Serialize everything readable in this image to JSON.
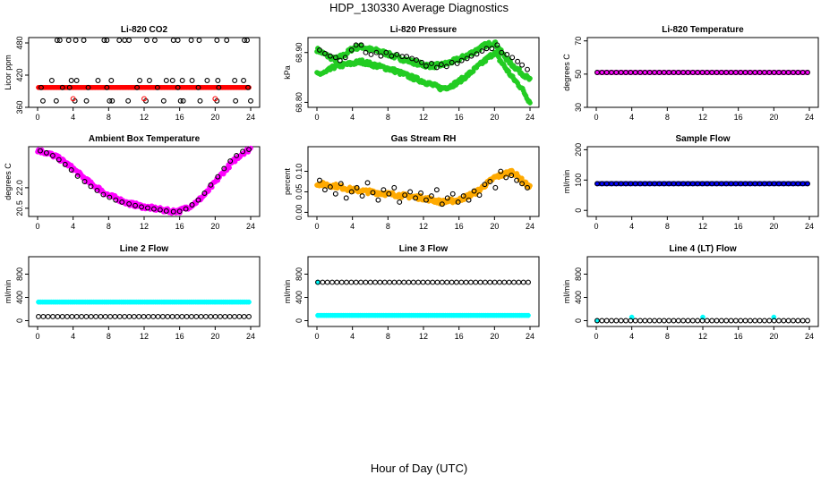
{
  "figure": {
    "title": "HDP_130330  Average Diagnostics",
    "xlabel": "Hour of Day (UTC)"
  },
  "colors": {
    "black": "#000000",
    "red": "#ff0000",
    "green": "#22cc22",
    "magenta": "#ff00ff",
    "orange": "#ffaa00",
    "blue": "#0000ff",
    "cyan": "#00ffff"
  },
  "chart_data": [
    {
      "type": "scatter",
      "title": "Li-820 CO2",
      "ylabel": "Licor ppm",
      "xlim": [
        0,
        24
      ],
      "ylim": [
        360,
        490
      ],
      "xticks": [
        "0",
        "4",
        "8",
        "12",
        "16",
        "20",
        "24"
      ],
      "yticks": [
        {
          "value": 360,
          "label": "360"
        },
        {
          "value": 420,
          "label": "420"
        },
        {
          "value": 480,
          "label": "480"
        }
      ],
      "series": [
        {
          "name": "red dense",
          "color": "red",
          "marker": "filled",
          "y_const": 397,
          "count": 160
        },
        {
          "name": "black upper",
          "color": "black",
          "marker": "open",
          "x": [
            2.2,
            2.5,
            3.5,
            4.3,
            5.2,
            7.5,
            7.8,
            9.2,
            9.8,
            10.3,
            12.3,
            13.2,
            15.3,
            15.8,
            17.3,
            18.2,
            20.2,
            21.3,
            23.3,
            23.6
          ],
          "y": [
            485,
            485,
            485,
            485,
            485,
            485,
            485,
            485,
            485,
            485,
            485,
            485,
            485,
            485,
            485,
            485,
            485,
            485,
            485,
            485
          ]
        },
        {
          "name": "black mid",
          "color": "black",
          "marker": "open",
          "x": [
            1.6,
            3.8,
            4.4,
            6.8,
            8.3,
            11.5,
            12.6,
            14.5,
            15.2,
            16.3,
            17.4,
            19.1,
            20.3,
            22.2,
            23.2
          ],
          "y": [
            410,
            410,
            410,
            410,
            410,
            410,
            410,
            410,
            410,
            410,
            410,
            410,
            410,
            410,
            410
          ]
        },
        {
          "name": "black 397",
          "color": "black",
          "marker": "open",
          "x": [
            0.4,
            2.8,
            3.6,
            5.7,
            7.8,
            11.2,
            13.5,
            15.8,
            18.1,
            20.4,
            23.7
          ],
          "y": [
            397,
            397,
            397,
            397,
            397,
            397,
            397,
            397,
            397,
            397,
            397
          ]
        },
        {
          "name": "black low",
          "color": "black",
          "marker": "open",
          "x": [
            0.6,
            2.1,
            4.2,
            5.5,
            8.1,
            8.4,
            10.2,
            12.2,
            14.2,
            16.1,
            16.4,
            18.3,
            20.2,
            22.3,
            24.0
          ],
          "y": [
            372,
            372,
            372,
            372,
            372,
            372,
            372,
            372,
            372,
            372,
            372,
            372,
            372,
            372,
            372
          ]
        },
        {
          "name": "red low",
          "color": "red",
          "marker": "open",
          "x": [
            4.0,
            12.0,
            20.0
          ],
          "y": [
            376,
            376,
            376
          ]
        }
      ]
    },
    {
      "type": "scatter",
      "title": "Li-820 Pressure",
      "ylabel": "kPa",
      "xlim": [
        0,
        24
      ],
      "ylim": [
        68.79,
        68.93
      ],
      "xticks": [
        "0",
        "4",
        "8",
        "12",
        "16",
        "20",
        "24"
      ],
      "yticks": [
        {
          "value": 68.8,
          "label": "68.80"
        },
        {
          "value": 68.9,
          "label": "68.90"
        }
      ],
      "series": [
        {
          "name": "green upper",
          "color": "green",
          "marker": "filled",
          "x": [
            0,
            1,
            2,
            3,
            4,
            5,
            6,
            7,
            8,
            9,
            10,
            11,
            12,
            13,
            14,
            15,
            16,
            17,
            18,
            19,
            20,
            21,
            22,
            23,
            24
          ],
          "y": [
            68.906,
            68.895,
            68.886,
            68.894,
            68.908,
            68.912,
            68.906,
            68.903,
            68.897,
            68.89,
            68.885,
            68.88,
            68.875,
            68.873,
            68.875,
            68.88,
            68.887,
            68.895,
            68.905,
            68.915,
            68.92,
            68.895,
            68.875,
            68.86,
            68.845
          ]
        },
        {
          "name": "green lower",
          "color": "green",
          "marker": "filled",
          "x": [
            0,
            1,
            2,
            3,
            4,
            5,
            6,
            7,
            8,
            9,
            10,
            11,
            12,
            13,
            14,
            15,
            16,
            17,
            18,
            19,
            20,
            21,
            22,
            23,
            24
          ],
          "y": [
            68.856,
            68.86,
            68.872,
            68.875,
            68.878,
            68.882,
            68.877,
            68.872,
            68.868,
            68.862,
            68.855,
            68.848,
            68.842,
            68.835,
            68.828,
            68.832,
            68.842,
            68.855,
            68.87,
            68.885,
            68.9,
            68.875,
            68.85,
            68.83,
            68.8
          ]
        },
        {
          "name": "black",
          "color": "black",
          "marker": "open",
          "x": [
            0.3,
            0.9,
            1.5,
            2.1,
            2.6,
            3.2,
            3.9,
            4.4,
            5.0,
            5.5,
            6.1,
            6.7,
            7.2,
            7.8,
            8.4,
            9.0,
            9.6,
            10.1,
            10.7,
            11.2,
            11.8,
            12.3,
            12.9,
            13.5,
            14.0,
            14.6,
            15.2,
            15.8,
            16.3,
            16.9,
            17.4,
            18.0,
            18.6,
            19.1,
            19.7,
            20.3,
            20.8,
            21.4,
            22.0,
            22.6,
            23.1,
            23.7
          ],
          "y": [
            68.905,
            68.898,
            68.893,
            68.89,
            68.884,
            68.89,
            68.905,
            68.915,
            68.915,
            68.9,
            68.896,
            68.9,
            68.893,
            68.9,
            68.893,
            68.896,
            68.892,
            68.892,
            68.888,
            68.885,
            68.88,
            68.873,
            68.878,
            68.87,
            68.876,
            68.872,
            68.88,
            68.878,
            68.884,
            68.888,
            68.893,
            68.897,
            68.903,
            68.908,
            68.908,
            68.915,
            68.9,
            68.896,
            68.89,
            68.882,
            68.875,
            68.866
          ]
        }
      ]
    },
    {
      "type": "scatter",
      "title": "Li-820 Temperature",
      "ylabel": "degrees C",
      "xlim": [
        0,
        24
      ],
      "ylim": [
        30,
        72
      ],
      "xticks": [
        "0",
        "4",
        "8",
        "12",
        "16",
        "20",
        "24"
      ],
      "yticks": [
        {
          "value": 30,
          "label": "30"
        },
        {
          "value": 50,
          "label": "50"
        },
        {
          "value": 70,
          "label": "70"
        }
      ],
      "series": [
        {
          "name": "magenta",
          "color": "magenta",
          "marker": "filled",
          "y_const": 51,
          "count": 100
        },
        {
          "name": "black",
          "color": "black",
          "marker": "open",
          "y_const": 51,
          "count": 45
        }
      ]
    },
    {
      "type": "scatter",
      "title": "Ambient Box Temperature",
      "ylabel": "degrees C",
      "xlim": [
        0,
        24
      ],
      "ylim": [
        19.9,
        25.0
      ],
      "xticks": [
        "0",
        "4",
        "8",
        "12",
        "16",
        "20",
        "24"
      ],
      "yticks": [
        {
          "value": 20.5,
          "label": "20.5"
        },
        {
          "value": 22.0,
          "label": "22.0"
        }
      ],
      "series": [
        {
          "name": "magenta",
          "color": "magenta",
          "marker": "filled",
          "x": [
            0,
            1,
            2,
            3,
            4,
            5,
            6,
            7,
            8,
            9,
            10,
            11,
            12,
            13,
            14,
            15,
            16,
            17,
            18,
            19,
            20,
            21,
            22,
            23,
            24
          ],
          "y": [
            24.75,
            24.55,
            24.3,
            23.9,
            23.4,
            22.85,
            22.3,
            21.9,
            21.45,
            21.2,
            20.9,
            20.75,
            20.6,
            20.5,
            20.38,
            20.28,
            20.3,
            20.6,
            21.0,
            21.6,
            22.4,
            23.2,
            23.9,
            24.5,
            24.85
          ]
        },
        {
          "name": "black",
          "color": "black",
          "marker": "open",
          "x": [
            0.3,
            1.0,
            1.7,
            2.4,
            3.1,
            3.8,
            4.5,
            5.3,
            6.0,
            6.7,
            7.4,
            8.1,
            8.8,
            9.5,
            10.3,
            11.0,
            11.7,
            12.4,
            13.1,
            13.8,
            14.5,
            15.3,
            16.0,
            16.7,
            17.4,
            18.1,
            18.8,
            19.5,
            20.3,
            21.0,
            21.7,
            22.4,
            23.1,
            23.8
          ],
          "y": [
            24.7,
            24.55,
            24.35,
            24.05,
            23.7,
            23.3,
            22.85,
            22.45,
            22.1,
            21.8,
            21.5,
            21.3,
            21.1,
            20.95,
            20.82,
            20.7,
            20.6,
            20.52,
            20.45,
            20.38,
            20.3,
            20.25,
            20.28,
            20.45,
            20.75,
            21.1,
            21.6,
            22.2,
            22.8,
            23.4,
            23.95,
            24.35,
            24.65,
            24.8
          ]
        }
      ]
    },
    {
      "type": "scatter",
      "title": "Gas Stream RH",
      "ylabel": "percent",
      "xlim": [
        0,
        24
      ],
      "ylim": [
        -0.01,
        0.16
      ],
      "xticks": [
        "0",
        "4",
        "8",
        "12",
        "16",
        "20",
        "24"
      ],
      "yticks": [
        {
          "value": 0.0,
          "label": "0.00"
        },
        {
          "value": 0.05,
          "label": "0.05"
        },
        {
          "value": 0.1,
          "label": "0.10"
        }
      ],
      "series": [
        {
          "name": "orange",
          "color": "orange",
          "marker": "filled",
          "x": [
            0,
            2,
            4,
            6,
            8,
            10,
            12,
            14,
            16,
            18,
            20,
            22,
            24
          ],
          "y": [
            0.07,
            0.065,
            0.055,
            0.05,
            0.045,
            0.04,
            0.035,
            0.025,
            0.03,
            0.05,
            0.085,
            0.1,
            0.06
          ]
        },
        {
          "name": "black",
          "color": "black",
          "marker": "open",
          "x": [
            0.3,
            0.9,
            1.5,
            2.1,
            2.7,
            3.3,
            3.9,
            4.5,
            5.1,
            5.7,
            6.3,
            6.9,
            7.5,
            8.1,
            8.7,
            9.3,
            9.9,
            10.5,
            11.1,
            11.7,
            12.3,
            12.9,
            13.5,
            14.1,
            14.7,
            15.3,
            15.9,
            16.5,
            17.1,
            17.7,
            18.3,
            18.9,
            19.5,
            20.1,
            20.7,
            21.3,
            21.9,
            22.5,
            23.1,
            23.7
          ],
          "y": [
            0.078,
            0.055,
            0.062,
            0.045,
            0.07,
            0.035,
            0.05,
            0.06,
            0.04,
            0.072,
            0.048,
            0.03,
            0.055,
            0.045,
            0.06,
            0.025,
            0.042,
            0.05,
            0.035,
            0.047,
            0.03,
            0.04,
            0.055,
            0.02,
            0.035,
            0.045,
            0.025,
            0.04,
            0.03,
            0.052,
            0.042,
            0.068,
            0.075,
            0.06,
            0.1,
            0.085,
            0.09,
            0.078,
            0.07,
            0.06
          ]
        }
      ]
    },
    {
      "type": "scatter",
      "title": "Sample Flow",
      "ylabel": "ml/min",
      "xlim": [
        0,
        24
      ],
      "ylim": [
        -20,
        210
      ],
      "xticks": [
        "0",
        "4",
        "8",
        "12",
        "16",
        "20",
        "24"
      ],
      "yticks": [
        {
          "value": 0,
          "label": "0"
        },
        {
          "value": 100,
          "label": "100"
        },
        {
          "value": 200,
          "label": "200"
        }
      ],
      "series": [
        {
          "name": "blue",
          "color": "blue",
          "marker": "filled",
          "y_const": 88,
          "count": 120
        },
        {
          "name": "black",
          "color": "black",
          "marker": "open",
          "y_const": 88,
          "count": 45
        }
      ]
    },
    {
      "type": "scatter",
      "title": "Line 2 Flow",
      "ylabel": "ml/min",
      "xlim": [
        0,
        24
      ],
      "ylim": [
        -100,
        1100
      ],
      "xticks": [
        "0",
        "4",
        "8",
        "12",
        "16",
        "20",
        "24"
      ],
      "yticks": [
        {
          "value": 0,
          "label": "0"
        },
        {
          "value": 400,
          "label": "400"
        },
        {
          "value": 800,
          "label": "800"
        }
      ],
      "series": [
        {
          "name": "cyan",
          "color": "cyan",
          "marker": "filled",
          "y_const": 320,
          "count": 100
        },
        {
          "name": "black",
          "color": "black",
          "marker": "open",
          "y_const": 70,
          "count": 45
        }
      ]
    },
    {
      "type": "scatter",
      "title": "Line 3 Flow",
      "ylabel": "ml/min",
      "xlim": [
        0,
        24
      ],
      "ylim": [
        -100,
        1100
      ],
      "xticks": [
        "0",
        "4",
        "8",
        "12",
        "16",
        "20",
        "24"
      ],
      "yticks": [
        {
          "value": 0,
          "label": "0"
        },
        {
          "value": 400,
          "label": "400"
        },
        {
          "value": 800,
          "label": "800"
        }
      ],
      "series": [
        {
          "name": "cyan",
          "color": "cyan",
          "marker": "filled",
          "y_const": 90,
          "count": 100
        },
        {
          "name": "cyan first",
          "color": "cyan",
          "marker": "filled",
          "x": [
            0.1
          ],
          "y": [
            660
          ]
        },
        {
          "name": "black",
          "color": "black",
          "marker": "open",
          "y_const": 660,
          "count": 45
        }
      ]
    },
    {
      "type": "scatter",
      "title": "Line 4 (LT) Flow",
      "ylabel": "ml/min",
      "xlim": [
        0,
        24
      ],
      "ylim": [
        -100,
        1100
      ],
      "xticks": [
        "0",
        "4",
        "8",
        "12",
        "16",
        "20",
        "24"
      ],
      "yticks": [
        {
          "value": 0,
          "label": "0"
        },
        {
          "value": 400,
          "label": "400"
        },
        {
          "value": 800,
          "label": "800"
        }
      ],
      "series": [
        {
          "name": "cyan",
          "color": "cyan",
          "marker": "filled",
          "x": [
            0.1,
            4.0,
            12.0,
            20.0
          ],
          "y": [
            0,
            60,
            60,
            60
          ]
        },
        {
          "name": "black",
          "color": "black",
          "marker": "open",
          "y_const": 0,
          "count": 45
        }
      ]
    }
  ]
}
